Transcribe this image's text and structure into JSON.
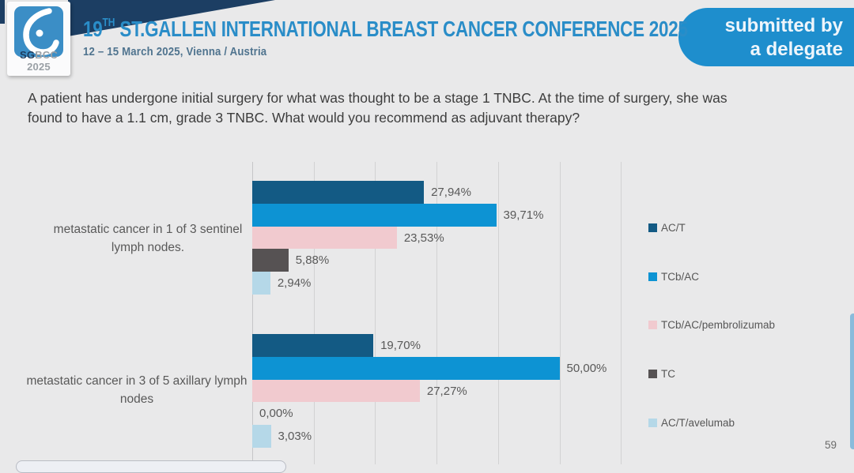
{
  "header": {
    "logo": {
      "sg": "SG",
      "bcc": "BCC 2025"
    },
    "title": {
      "prefix": "19",
      "superscript": "TH",
      "rest": " ST.GALLEN INTERNATIONAL BREAST CANCER CONFERENCE 2025"
    },
    "subtitle": "12 – 15 March 2025, Vienna / Austria",
    "badge": {
      "line1": "submitted by",
      "line2": "a delegate"
    }
  },
  "question": "A patient has undergone initial surgery for what was thought to be a stage 1 TNBC.  At the time of surgery, she was found to have a 1.1 cm, grade 3 TNBC.  What would you recommend as adjuvant therapy?",
  "page_number": "59",
  "colors": {
    "background": "#e9e9ea",
    "accent_blue": "#2a8dc8",
    "navy": "#1c3e63",
    "badge_blue": "#1e8ecd",
    "gridline": "#d2d2d3",
    "label_gray": "#595959"
  },
  "chart_data": {
    "type": "bar",
    "orientation": "horizontal",
    "categories": [
      "metastatic cancer in 1 of 3 sentinel lymph nodes.",
      "metastatic cancer in 3 of 5 axillary lymph nodes"
    ],
    "series": [
      {
        "name": "AC/T",
        "color": "#135a84",
        "values": [
          27.94,
          19.7
        ]
      },
      {
        "name": "TCb/AC",
        "color": "#0d93d3",
        "values": [
          39.71,
          50.0
        ]
      },
      {
        "name": "TCb/AC/pembrolizumab",
        "color": "#f1cacf",
        "values": [
          23.53,
          27.27
        ]
      },
      {
        "name": "TC",
        "color": "#565253",
        "values": [
          5.88,
          0.0
        ]
      },
      {
        "name": "AC/T/avelumab",
        "color": "#b5d8e8",
        "values": [
          2.94,
          3.03
        ]
      }
    ],
    "value_labels": [
      [
        "27,94%",
        "39,71%",
        "23,53%",
        "5,88%",
        "2,94%"
      ],
      [
        "19,70%",
        "50,00%",
        "27,27%",
        "0,00%",
        "3,03%"
      ]
    ],
    "xlim": [
      0,
      60
    ],
    "gridline_step_pct": 10,
    "grid": true,
    "legend_position": "right"
  }
}
